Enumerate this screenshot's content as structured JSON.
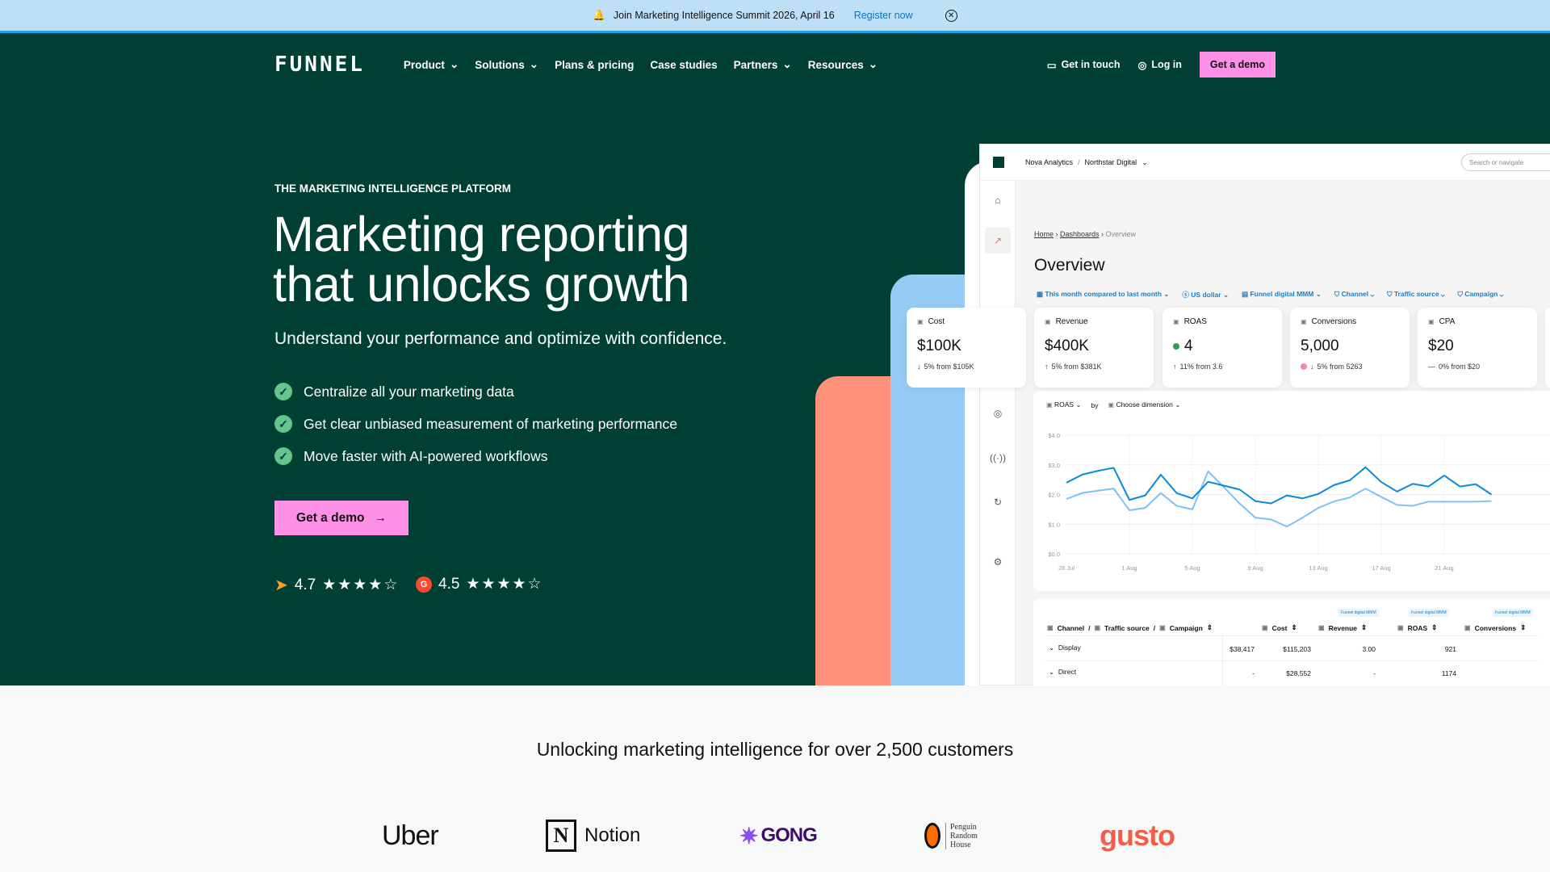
{
  "banner": {
    "text": "Join Marketing Intelligence Summit 2026, April 16",
    "link": "Register now",
    "icon": "bell-icon"
  },
  "nav": {
    "logo": "FUNNEL",
    "items": [
      {
        "label": "Product",
        "dropdown": true
      },
      {
        "label": "Solutions",
        "dropdown": true
      },
      {
        "label": "Plans & pricing",
        "dropdown": false
      },
      {
        "label": "Case studies",
        "dropdown": false
      },
      {
        "label": "Partners",
        "dropdown": true
      },
      {
        "label": "Resources",
        "dropdown": true
      }
    ],
    "get_in_touch": "Get in touch",
    "login": "Log in",
    "demo": "Get a demo"
  },
  "hero": {
    "eyebrow": "THE MARKETING INTELLIGENCE PLATFORM",
    "title_1": "Marketing reporting",
    "title_2": "that unlocks growth",
    "subtitle": "Understand your performance and optimize with confidence.",
    "bullets": [
      "Centralize all your marketing data",
      "Get clear unbiased measurement of marketing performance",
      "Move faster with AI-powered workflows"
    ],
    "cta": "Get a demo",
    "ratings": [
      {
        "score": "4.7",
        "stars": 4.7,
        "source": "capterra"
      },
      {
        "score": "4.5",
        "stars": 4.5,
        "source": "g2"
      }
    ]
  },
  "colors": {
    "hero_bg": "#003f34",
    "cta": "#ff90e8",
    "accent_blue": "#1b7fc0",
    "coral": "#ff9079",
    "light_blue": "#96ccf4"
  },
  "app": {
    "org": "Nova Analytics",
    "workspace": "Northstar Digital",
    "search_placeholder": "Search or navigate",
    "breadcrumb": [
      "Home",
      "Dashboards",
      "Overview"
    ],
    "title": "Overview",
    "filters": [
      "This month compared to last month",
      "US dollar",
      "Funnel digital MMM",
      "Channel",
      "Traffic source",
      "Campaign"
    ],
    "kpis": [
      {
        "label": "Cost",
        "value": "$100K",
        "change": "5% from $105K",
        "dir": "down"
      },
      {
        "label": "Revenue",
        "value": "$400K",
        "change": "5% from $381K",
        "dir": "up"
      },
      {
        "label": "ROAS",
        "value": "4",
        "change": "11% from 3.6",
        "dir": "up",
        "status": "#2e9e4f"
      },
      {
        "label": "Conversions",
        "value": "5,000",
        "change": "5% from 5263",
        "dir": "down",
        "status": "#f28b9b"
      },
      {
        "label": "CPA",
        "value": "$20",
        "change": "0% from $20",
        "dir": "flat"
      }
    ],
    "metric": "ROAS",
    "by": "by",
    "dimension": "Choose dimension",
    "table": {
      "columns": [
        "Channel",
        "Traffic source",
        "Campaign",
        "Cost",
        "Revenue",
        "ROAS",
        "Conversions"
      ],
      "tags": [
        "Funnel digital MMM",
        "Funnel digital MMM",
        "Funnel digital MMM"
      ],
      "rows": [
        {
          "name": "Display",
          "cost": "$38,417",
          "revenue": "$115,203",
          "roas": "3.00",
          "conv": "921"
        },
        {
          "name": "Direct",
          "cost": "-",
          "revenue": "$28,552",
          "roas": "-",
          "conv": "1174"
        }
      ]
    }
  },
  "chart_data": {
    "type": "line",
    "x_start": "28 Jul",
    "x_interval": "1 day",
    "xticks": [
      "28 Jul",
      "1 Aug",
      "5 Aug",
      "9 Aug",
      "13 Aug",
      "17 Aug",
      "21 Aug"
    ],
    "yticks": [
      "$0.0",
      "$1.0",
      "$2.0",
      "$3.0",
      "$4.0"
    ],
    "ylim": [
      0,
      4
    ],
    "grid": true,
    "series": [
      {
        "color": "#0a8ad8",
        "values": [
          2.4,
          2.67,
          2.8,
          2.9,
          1.82,
          1.97,
          2.67,
          2.05,
          1.87,
          2.43,
          2.3,
          2.17,
          1.78,
          1.7,
          1.97,
          1.87,
          2.02,
          2.32,
          2.48,
          2.92,
          2.42,
          2.1,
          2.36,
          2.27,
          2.64,
          2.27,
          2.35,
          2.0
        ]
      },
      {
        "color": "#7cc3ef",
        "values": [
          1.85,
          2.05,
          2.13,
          2.2,
          1.47,
          1.55,
          2.05,
          1.62,
          1.5,
          2.78,
          2.25,
          1.7,
          1.22,
          1.16,
          0.92,
          1.22,
          1.55,
          1.77,
          1.9,
          2.2,
          1.92,
          1.65,
          1.62,
          1.76,
          1.76,
          1.76,
          1.76,
          1.78
        ]
      }
    ]
  },
  "lower": {
    "heading": "Unlocking marketing intelligence for over 2,500 customers",
    "logos": [
      "Uber",
      "Notion",
      "GONG",
      "Penguin Random House",
      "gusto"
    ]
  }
}
